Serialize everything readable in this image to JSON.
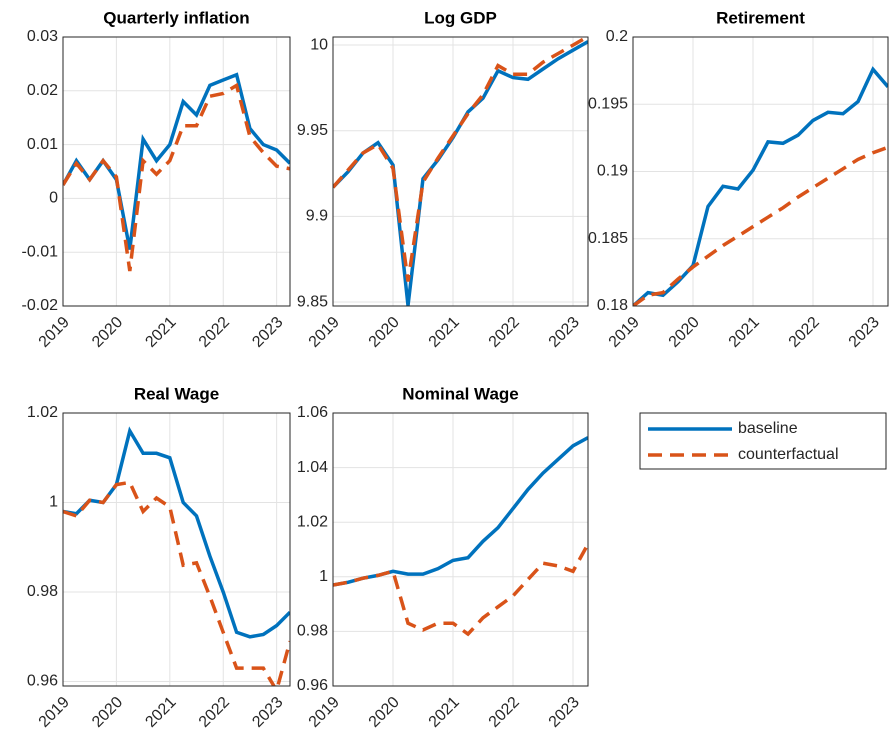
{
  "chart_data": [
    {
      "type": "line",
      "title": "Quarterly inflation",
      "x": [
        2019,
        2019.25,
        2019.5,
        2019.75,
        2020,
        2020.25,
        2020.5,
        2020.75,
        2021,
        2021.25,
        2021.5,
        2021.75,
        2022,
        2022.25,
        2022.5,
        2022.75,
        2023,
        2023.25
      ],
      "xlim": [
        2019,
        2023.25
      ],
      "xticks": [
        2019,
        2020,
        2021,
        2022,
        2023
      ],
      "ylim": [
        -0.02,
        0.03
      ],
      "yticks": [
        -0.02,
        -0.01,
        0,
        0.01,
        0.02,
        0.03
      ],
      "grid": true,
      "series": [
        {
          "name": "baseline",
          "color": "#0072bd",
          "style": "solid",
          "values": [
            0.0025,
            0.007,
            0.0035,
            0.007,
            0.0035,
            -0.0095,
            0.011,
            0.007,
            0.01,
            0.018,
            0.0155,
            0.021,
            0.022,
            0.023,
            0.013,
            0.01,
            0.009,
            0.0065
          ]
        },
        {
          "name": "counterfactual",
          "color": "#d95319",
          "style": "dashed",
          "values": [
            0.0025,
            0.0065,
            0.0035,
            0.007,
            0.004,
            -0.0135,
            0.007,
            0.0045,
            0.007,
            0.0135,
            0.0135,
            0.019,
            0.0195,
            0.021,
            0.0115,
            0.0085,
            0.006,
            0.0055
          ]
        }
      ]
    },
    {
      "type": "line",
      "title": "Log GDP",
      "x": [
        2019,
        2019.25,
        2019.5,
        2019.75,
        2020,
        2020.25,
        2020.5,
        2020.75,
        2021,
        2021.25,
        2021.5,
        2021.75,
        2022,
        2022.25,
        2022.5,
        2022.75,
        2023,
        2023.25
      ],
      "xlim": [
        2019,
        2023.25
      ],
      "xticks": [
        2019,
        2020,
        2021,
        2022,
        2023
      ],
      "ylim": [
        9.8477,
        10.0047
      ],
      "yticks": [
        9.85,
        9.9,
        9.95,
        10
      ],
      "grid": true,
      "series": [
        {
          "color": "#0072bd",
          "style": "solid",
          "values": [
            9.917,
            9.926,
            9.937,
            9.943,
            9.93,
            9.848,
            9.922,
            9.933,
            9.946,
            9.961,
            9.969,
            9.985,
            9.981,
            9.98,
            9.986,
            9.992,
            9.997,
            10.002
          ]
        },
        {
          "color": "#d95319",
          "style": "dashed",
          "values": [
            9.917,
            9.927,
            9.937,
            9.942,
            9.928,
            9.862,
            9.92,
            9.934,
            9.947,
            9.96,
            9.971,
            9.988,
            9.983,
            9.983,
            9.99,
            9.995,
            10.0,
            10.005
          ]
        }
      ]
    },
    {
      "type": "line",
      "title": "Retirement",
      "x": [
        2019,
        2019.25,
        2019.5,
        2019.75,
        2020,
        2020.25,
        2020.5,
        2020.75,
        2021,
        2021.25,
        2021.5,
        2021.75,
        2022,
        2022.25,
        2022.5,
        2022.75,
        2023,
        2023.25
      ],
      "xlim": [
        2019,
        2023.25
      ],
      "xticks": [
        2019,
        2020,
        2021,
        2022,
        2023
      ],
      "ylim": [
        0.18,
        0.2
      ],
      "yticks": [
        0.18,
        0.185,
        0.19,
        0.195,
        0.2
      ],
      "grid": true,
      "series": [
        {
          "color": "#0072bd",
          "style": "solid",
          "values": [
            0.18,
            0.181,
            0.1808,
            0.1818,
            0.183,
            0.1874,
            0.1889,
            0.1887,
            0.1901,
            0.1922,
            0.1921,
            0.1927,
            0.1938,
            0.1944,
            0.1943,
            0.1952,
            0.1976,
            0.1963
          ]
        },
        {
          "color": "#d95319",
          "style": "dashed",
          "values": [
            0.18,
            0.1808,
            0.181,
            0.182,
            0.1829,
            0.1837,
            0.1845,
            0.1852,
            0.1859,
            0.1866,
            0.1873,
            0.1881,
            0.1888,
            0.1895,
            0.1902,
            0.1909,
            0.1914,
            0.1918
          ]
        }
      ]
    },
    {
      "type": "line",
      "title": "Real Wage",
      "x": [
        2019,
        2019.25,
        2019.5,
        2019.75,
        2020,
        2020.25,
        2020.5,
        2020.75,
        2021,
        2021.25,
        2021.5,
        2021.75,
        2022,
        2022.25,
        2022.5,
        2022.75,
        2023,
        2023.25
      ],
      "xlim": [
        2019,
        2023.25
      ],
      "xticks": [
        2019,
        2020,
        2021,
        2022,
        2023
      ],
      "ylim": [
        0.959,
        1.02
      ],
      "yticks": [
        0.96,
        0.98,
        1,
        1.02
      ],
      "grid": true,
      "series": [
        {
          "color": "#0072bd",
          "style": "solid",
          "values": [
            0.998,
            0.9975,
            1.0005,
            1.0,
            1.004,
            1.016,
            1.011,
            1.011,
            1.01,
            1.0,
            0.997,
            0.988,
            0.98,
            0.971,
            0.97,
            0.9705,
            0.9725,
            0.9755
          ]
        },
        {
          "color": "#d95319",
          "style": "dashed",
          "values": [
            0.998,
            0.997,
            1.0005,
            1.0,
            1.004,
            1.0045,
            0.998,
            1.001,
            0.999,
            0.986,
            0.9865,
            0.979,
            0.971,
            0.963,
            0.963,
            0.963,
            0.958,
            0.969
          ]
        }
      ]
    },
    {
      "type": "line",
      "title": "Nominal Wage",
      "x": [
        2019,
        2019.25,
        2019.5,
        2019.75,
        2020,
        2020.25,
        2020.5,
        2020.75,
        2021,
        2021.25,
        2021.5,
        2021.75,
        2022,
        2022.25,
        2022.5,
        2022.75,
        2023,
        2023.25
      ],
      "xlim": [
        2019,
        2023.25
      ],
      "xticks": [
        2019,
        2020,
        2021,
        2022,
        2023
      ],
      "ylim": [
        0.96,
        1.06
      ],
      "yticks": [
        0.96,
        0.98,
        1,
        1.02,
        1.04,
        1.06
      ],
      "grid": true,
      "series": [
        {
          "color": "#0072bd",
          "style": "solid",
          "values": [
            0.997,
            0.998,
            0.9995,
            1.0005,
            1.002,
            1.001,
            1.001,
            1.003,
            1.006,
            1.007,
            1.013,
            1.018,
            1.025,
            1.032,
            1.038,
            1.043,
            1.048,
            1.051
          ]
        },
        {
          "color": "#d95319",
          "style": "dashed",
          "values": [
            0.997,
            0.998,
            0.9995,
            1.0005,
            1.002,
            0.983,
            0.9805,
            0.983,
            0.983,
            0.979,
            0.985,
            0.989,
            0.993,
            0.999,
            1.005,
            1.004,
            1.002,
            1.012
          ]
        }
      ]
    }
  ]
}
